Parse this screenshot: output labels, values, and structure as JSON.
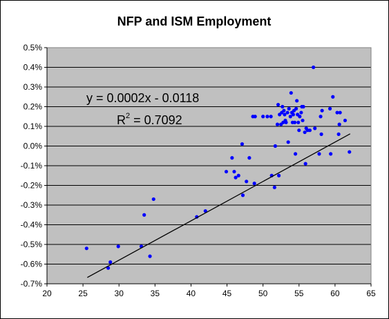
{
  "chart_data": {
    "type": "scatter",
    "title": "NFP and ISM Employment",
    "xlabel": "",
    "ylabel": "",
    "xlim": [
      20,
      65
    ],
    "ylim": [
      -0.007,
      0.005
    ],
    "x_ticks": [
      "20",
      "25",
      "30",
      "35",
      "40",
      "45",
      "50",
      "55",
      "60",
      "65"
    ],
    "y_ticks": [
      "-0.7%",
      "-0.6%",
      "-0.5%",
      "-0.4%",
      "-0.3%",
      "-0.2%",
      "-0.1%",
      "0.0%",
      "0.1%",
      "0.2%",
      "0.3%",
      "0.4%",
      "0.5%"
    ],
    "grid": "horizontal",
    "plot_background": "#C0C0C0",
    "marker_color": "#0000FF",
    "trendline": {
      "slope": 0.0002,
      "intercept": -0.0118,
      "x_range": [
        25.6,
        62.1
      ],
      "equation_label": "y = 0.0002x - 0.0118",
      "r2_prefix": "R",
      "r2_exp": "2",
      "r2_suffix": " = 0.7092"
    },
    "points": [
      {
        "x": 25.5,
        "y": -0.0052
      },
      {
        "x": 28.5,
        "y": -0.0062
      },
      {
        "x": 28.8,
        "y": -0.0059
      },
      {
        "x": 29.9,
        "y": -0.0051
      },
      {
        "x": 33.1,
        "y": -0.0051
      },
      {
        "x": 33.5,
        "y": -0.0035
      },
      {
        "x": 34.3,
        "y": -0.0056
      },
      {
        "x": 34.8,
        "y": -0.0027
      },
      {
        "x": 40.8,
        "y": -0.0036
      },
      {
        "x": 42.0,
        "y": -0.0033
      },
      {
        "x": 44.9,
        "y": -0.0013
      },
      {
        "x": 45.7,
        "y": -0.0006
      },
      {
        "x": 46.0,
        "y": -0.0013
      },
      {
        "x": 46.2,
        "y": -0.0016
      },
      {
        "x": 46.6,
        "y": -0.0015
      },
      {
        "x": 47.1,
        "y": 0.0001
      },
      {
        "x": 47.2,
        "y": -0.0025
      },
      {
        "x": 47.7,
        "y": -0.0018
      },
      {
        "x": 48.1,
        "y": -0.0006
      },
      {
        "x": 48.6,
        "y": 0.0015
      },
      {
        "x": 48.8,
        "y": -0.0019
      },
      {
        "x": 48.9,
        "y": 0.0015
      },
      {
        "x": 50.0,
        "y": 0.0015
      },
      {
        "x": 50.6,
        "y": 0.0015
      },
      {
        "x": 51.1,
        "y": 0.0015
      },
      {
        "x": 51.2,
        "y": -0.0015
      },
      {
        "x": 51.6,
        "y": -0.0021
      },
      {
        "x": 51.7,
        "y": 0.0
      },
      {
        "x": 52.0,
        "y": 0.0011
      },
      {
        "x": 52.1,
        "y": 0.0021
      },
      {
        "x": 52.2,
        "y": -0.0015
      },
      {
        "x": 52.3,
        "y": 0.0016
      },
      {
        "x": 52.5,
        "y": 0.0011
      },
      {
        "x": 52.6,
        "y": 0.0017
      },
      {
        "x": 52.7,
        "y": 0.002
      },
      {
        "x": 52.8,
        "y": 0.0012
      },
      {
        "x": 52.9,
        "y": 0.0018
      },
      {
        "x": 53.0,
        "y": 0.0016
      },
      {
        "x": 53.1,
        "y": 0.0013
      },
      {
        "x": 53.2,
        "y": 0.0012
      },
      {
        "x": 53.4,
        "y": 0.0017
      },
      {
        "x": 53.5,
        "y": 0.0002
      },
      {
        "x": 53.6,
        "y": 0.0019
      },
      {
        "x": 53.8,
        "y": 0.0015
      },
      {
        "x": 53.9,
        "y": 0.0027
      },
      {
        "x": 54.0,
        "y": 0.0017
      },
      {
        "x": 54.1,
        "y": 0.0012
      },
      {
        "x": 54.2,
        "y": 0.0016
      },
      {
        "x": 54.3,
        "y": 0.0018
      },
      {
        "x": 54.4,
        "y": 0.0012
      },
      {
        "x": 54.5,
        "y": -0.0004
      },
      {
        "x": 54.6,
        "y": 0.0019
      },
      {
        "x": 54.7,
        "y": 0.0023
      },
      {
        "x": 54.8,
        "y": 0.0016
      },
      {
        "x": 54.9,
        "y": 0.0012
      },
      {
        "x": 55.0,
        "y": 0.0008
      },
      {
        "x": 55.1,
        "y": 0.0015
      },
      {
        "x": 55.3,
        "y": 0.0017
      },
      {
        "x": 55.4,
        "y": 0.002
      },
      {
        "x": 55.5,
        "y": 0.0013
      },
      {
        "x": 55.6,
        "y": 0.002
      },
      {
        "x": 55.8,
        "y": 0.0007
      },
      {
        "x": 55.9,
        "y": -0.0009
      },
      {
        "x": 56.0,
        "y": 0.0009
      },
      {
        "x": 56.2,
        "y": 0.0008
      },
      {
        "x": 56.5,
        "y": 0.0008
      },
      {
        "x": 57.0,
        "y": 0.004
      },
      {
        "x": 57.2,
        "y": 0.0009
      },
      {
        "x": 57.8,
        "y": -0.0004
      },
      {
        "x": 58.0,
        "y": 0.0015
      },
      {
        "x": 58.1,
        "y": 0.0006
      },
      {
        "x": 58.2,
        "y": 0.0018
      },
      {
        "x": 59.3,
        "y": 0.0019
      },
      {
        "x": 59.4,
        "y": -0.0004
      },
      {
        "x": 59.7,
        "y": 0.0025
      },
      {
        "x": 60.3,
        "y": 0.0017
      },
      {
        "x": 60.5,
        "y": 0.0006
      },
      {
        "x": 60.6,
        "y": 0.0011
      },
      {
        "x": 60.7,
        "y": 0.0017
      },
      {
        "x": 61.4,
        "y": 0.0013
      },
      {
        "x": 62.0,
        "y": -0.0003
      }
    ]
  }
}
